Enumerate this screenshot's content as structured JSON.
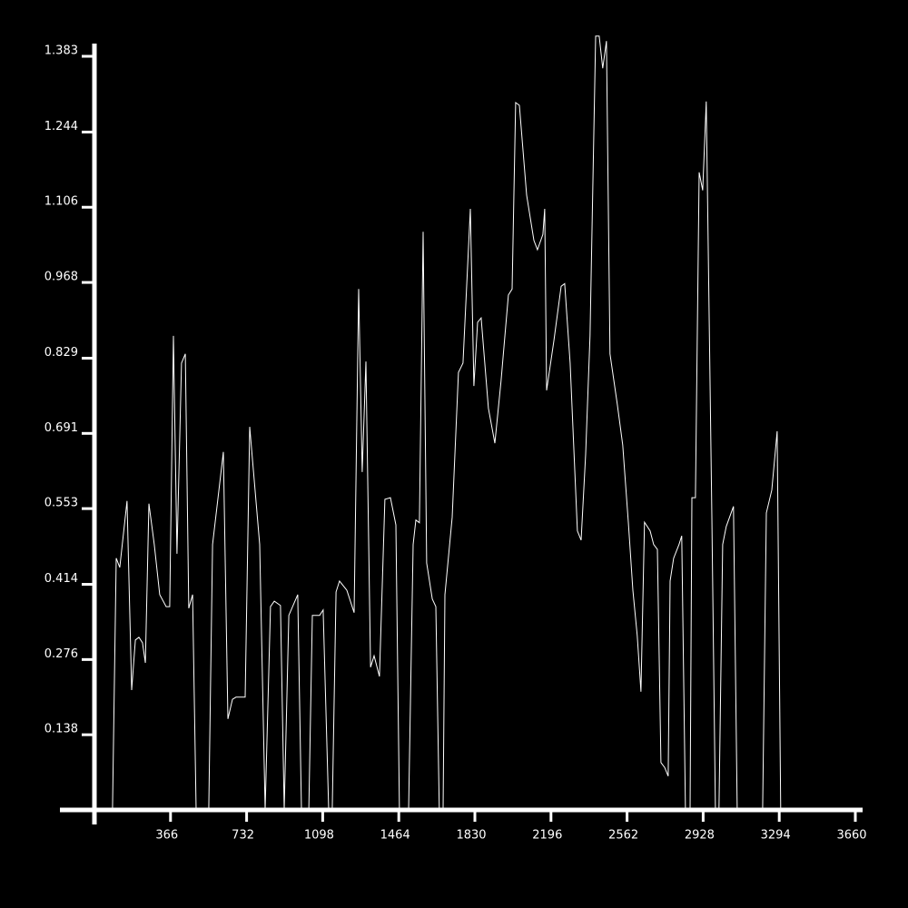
{
  "chart_data": {
    "type": "line",
    "color": "#ffffff",
    "x": [
      26,
      87,
      105,
      122,
      157,
      179,
      197,
      214,
      231,
      245,
      262,
      288,
      314,
      345,
      362,
      380,
      397,
      419,
      437,
      454,
      472,
      489,
      550,
      568,
      620,
      642,
      664,
      681,
      725,
      747,
      795,
      821,
      847,
      865,
      895,
      913,
      935,
      978,
      996,
      1031,
      1048,
      1083,
      1100,
      1127,
      1144,
      1162,
      1179,
      1214,
      1249,
      1271,
      1288,
      1306,
      1328,
      1345,
      1371,
      1397,
      1424,
      1450,
      1467,
      1511,
      1533,
      1546,
      1563,
      1581,
      1598,
      1625,
      1642,
      1659,
      1677,
      1686,
      1721,
      1751,
      1773,
      1808,
      1825,
      1843,
      1860,
      1895,
      1926,
      1956,
      1991,
      2009,
      2026,
      2044,
      2079,
      2114,
      2131,
      2157,
      2166,
      2175,
      2210,
      2245,
      2262,
      2288,
      2323,
      2341,
      2363,
      2384,
      2411,
      2428,
      2445,
      2463,
      2480,
      2515,
      2541,
      2568,
      2590,
      2611,
      2629,
      2646,
      2673,
      2690,
      2708,
      2725,
      2743,
      2760,
      2769,
      2786,
      2812,
      2825,
      2843,
      2865,
      2874,
      2891,
      2909,
      2926,
      2943,
      2970,
      2987,
      3004,
      3022,
      3039,
      3074,
      3092,
      3214,
      3232,
      3258,
      3284,
      3301
    ],
    "values": [
      0,
      0,
      0.462,
      0.445,
      0.567,
      0.22,
      0.312,
      0.317,
      0.307,
      0.27,
      0.562,
      0.487,
      0.395,
      0.373,
      0.373,
      0.87,
      0.47,
      0.82,
      0.837,
      0.37,
      0.395,
      0,
      0,
      0.487,
      0.657,
      0.167,
      0.203,
      0.207,
      0.207,
      0.703,
      0.487,
      0,
      0.373,
      0.383,
      0.375,
      0,
      0.357,
      0.395,
      0,
      0,
      0.357,
      0.357,
      0.367,
      0,
      0,
      0.4,
      0.42,
      0.403,
      0.362,
      0.956,
      0.62,
      0.823,
      0.262,
      0.283,
      0.245,
      0.57,
      0.573,
      0.523,
      0,
      0,
      0.487,
      0.532,
      0.527,
      1.061,
      0.453,
      0.387,
      0.373,
      0,
      0,
      0.395,
      0.537,
      0.803,
      0.82,
      1.103,
      0.778,
      0.895,
      0.903,
      0.737,
      0.673,
      0.787,
      0.945,
      0.956,
      1.298,
      1.293,
      1.128,
      1.045,
      1.028,
      1.056,
      1.103,
      0.77,
      0.861,
      0.961,
      0.966,
      0.82,
      0.512,
      0.495,
      0.653,
      0.87,
      1.42,
      1.42,
      1.361,
      1.411,
      0.837,
      0.745,
      0.67,
      0.528,
      0.403,
      0.32,
      0.217,
      0.528,
      0.512,
      0.487,
      0.478,
      0.087,
      0.078,
      0.062,
      0.42,
      0.462,
      0.487,
      0.503,
      0,
      0,
      0.573,
      0.573,
      1.17,
      1.137,
      1.3,
      0.537,
      0,
      0,
      0.487,
      0.52,
      0.557,
      0,
      0,
      0.545,
      0.587,
      0.695,
      0
    ],
    "xlim": [
      0,
      3660
    ],
    "xticks": [
      366,
      732,
      1098,
      1464,
      1830,
      2196,
      2562,
      2928,
      3294,
      3660
    ],
    "ylim": [
      0,
      1.383
    ],
    "yticks": [
      0.138,
      0.276,
      0.414,
      0.553,
      0.691,
      0.829,
      0.968,
      1.106,
      1.244,
      1.383
    ]
  }
}
